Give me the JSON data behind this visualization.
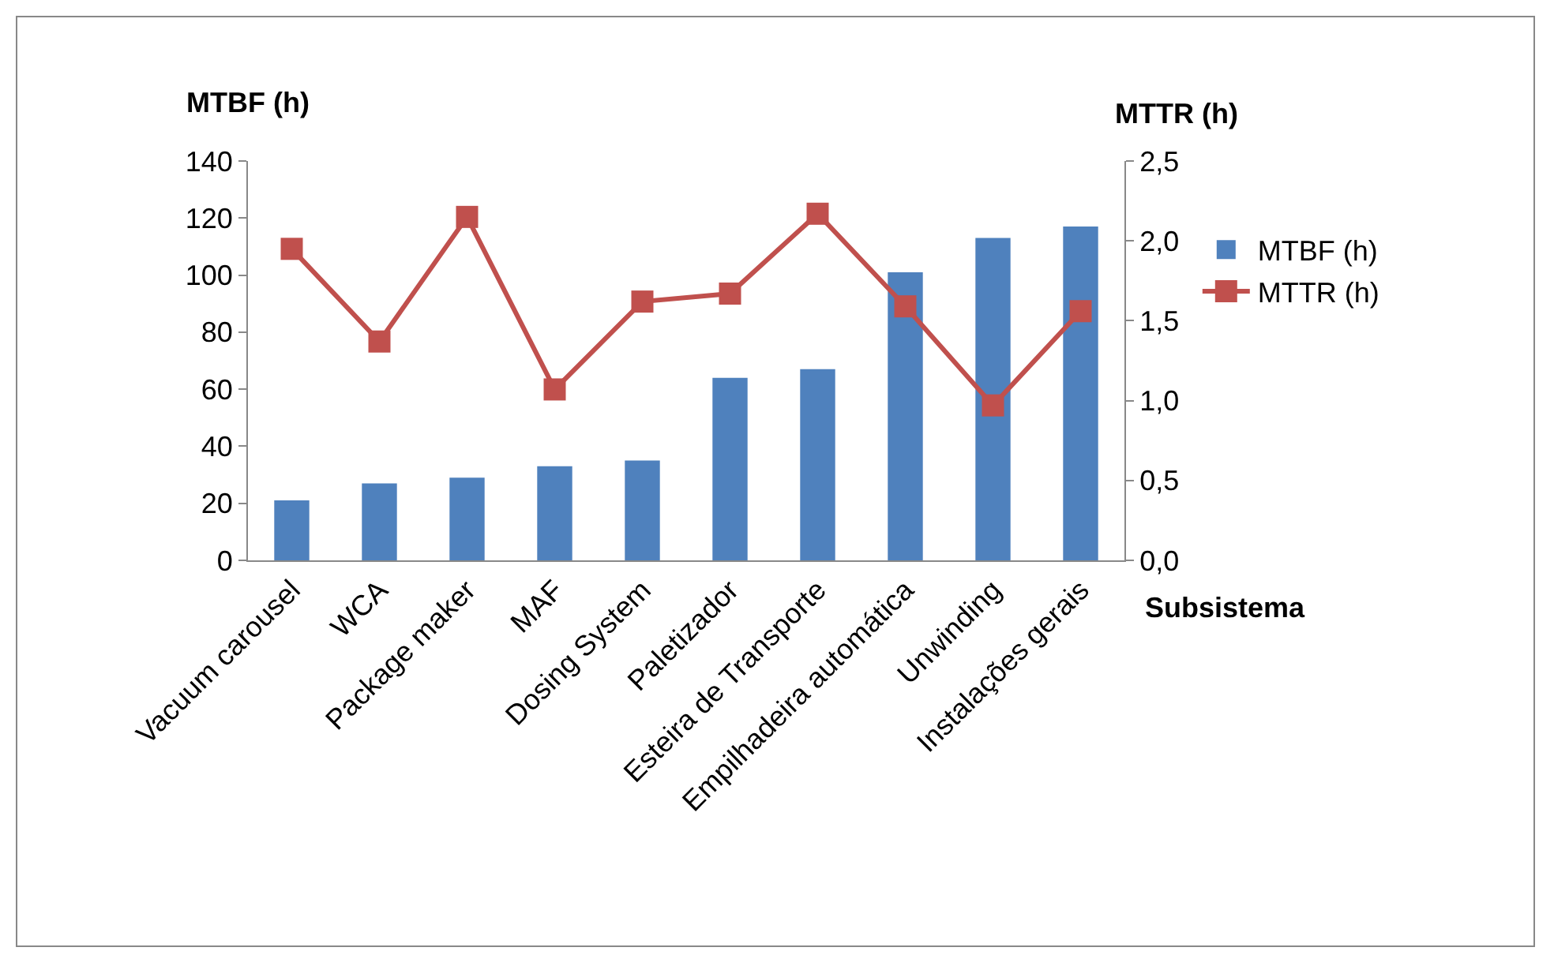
{
  "chart_data": {
    "type": "bar",
    "xlabel": "Subsistema",
    "ylabel": "MTBF (h)",
    "y2label": "MTTR (h)",
    "categories": [
      "Vacuum carousel",
      "WCA",
      "Package maker",
      "MAF",
      "Dosing System",
      "Paletizador",
      "Esteira de Transporte",
      "Empilhadeira automática",
      "Unwinding",
      "Instalações gerais"
    ],
    "series": [
      {
        "name": "MTBF (h)",
        "color": "#4f81bd",
        "values": [
          21,
          27,
          29,
          33,
          35,
          64,
          67,
          101,
          113,
          117
        ]
      },
      {
        "name": "MTTR (h)",
        "type": "line",
        "axis": "y2",
        "color": "#c0504d",
        "values": [
          1.95,
          1.37,
          2.15,
          1.07,
          1.62,
          1.67,
          2.17,
          1.59,
          0.97,
          1.56
        ]
      }
    ],
    "ylim": [
      0,
      140
    ],
    "yticks": [
      0,
      20,
      40,
      60,
      80,
      100,
      120,
      140
    ],
    "y2lim": [
      0,
      2.5
    ],
    "y2ticks": [
      {
        "value": 0,
        "label": "0,0"
      },
      {
        "value": 0.5,
        "label": "0,5"
      },
      {
        "value": 1,
        "label": "1,0"
      },
      {
        "value": 1.5,
        "label": "1,5"
      },
      {
        "value": 2,
        "label": "2,0"
      },
      {
        "value": 2.5,
        "label": "2,5"
      }
    ],
    "marker": "square",
    "legend": "right",
    "grid": false
  }
}
